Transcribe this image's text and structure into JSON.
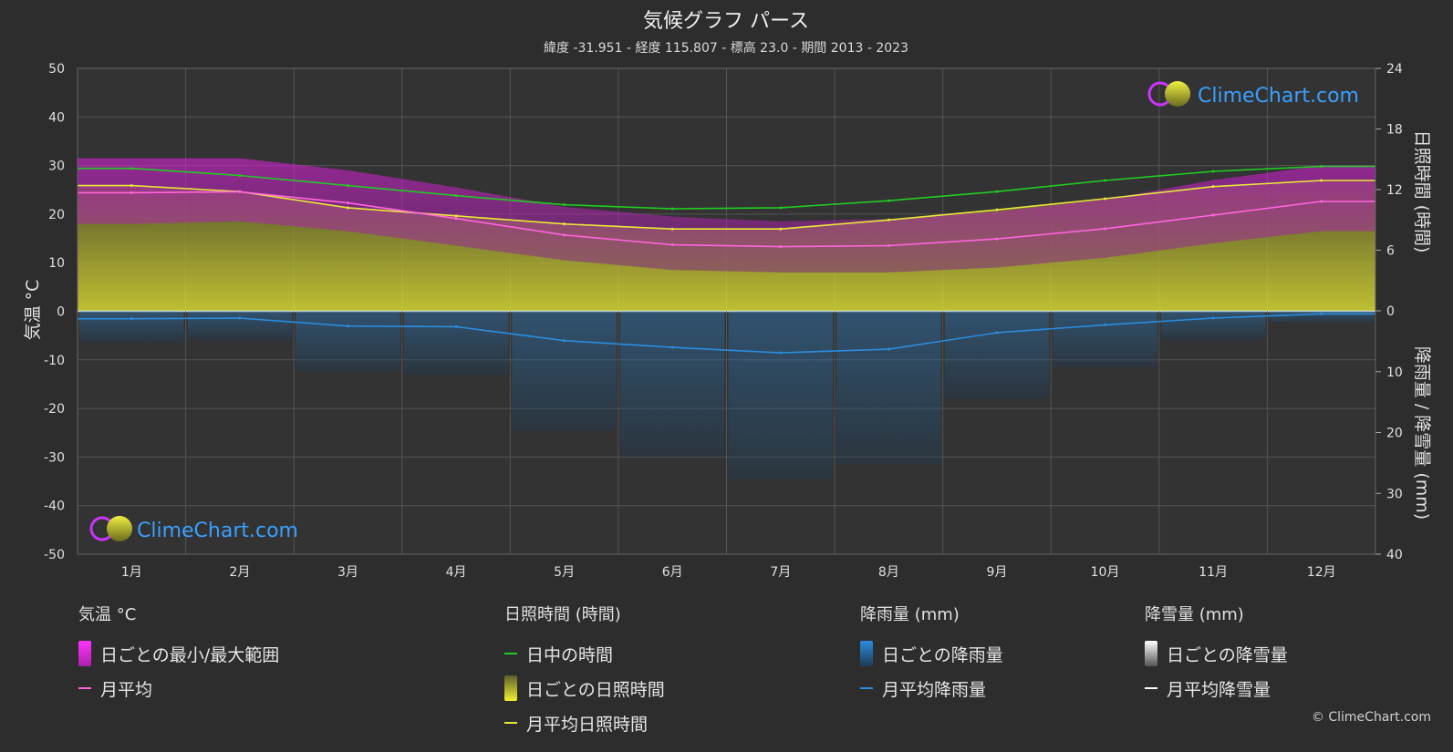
{
  "chart_data": {
    "type": "area",
    "title": "気候グラフ パース",
    "subtitle": "緯度 -31.951 - 経度 115.807 - 標高 23.0 - 期間 2013 - 2023",
    "left_axis": {
      "label": "気温 °C",
      "range": [
        -50,
        50
      ],
      "ticks": [
        50,
        40,
        30,
        20,
        10,
        0,
        -10,
        -20,
        -30,
        -40,
        -50
      ]
    },
    "right_axis_top": {
      "label": "日照時間 (時間)",
      "range": [
        0,
        24
      ],
      "ticks": [
        24,
        18,
        12,
        6,
        0
      ]
    },
    "right_axis_bottom": {
      "label": "降雨量 / 降雪量 (mm)",
      "range": [
        0,
        40
      ],
      "ticks": [
        0,
        10,
        20,
        30,
        40
      ]
    },
    "categories": [
      "1月",
      "2月",
      "3月",
      "4月",
      "5月",
      "6月",
      "7月",
      "8月",
      "9月",
      "10月",
      "11月",
      "12月"
    ],
    "grid": true,
    "series": [
      {
        "name": "日中の時間",
        "axis": "sunshine_hours",
        "color": "#22cc22",
        "values": [
          14.1,
          13.4,
          12.4,
          11.4,
          10.5,
          10.1,
          10.2,
          10.9,
          11.8,
          12.9,
          13.8,
          14.3
        ]
      },
      {
        "name": "月平均日照時間",
        "axis": "sunshine_hours",
        "color": "#e8e83a",
        "values": [
          12.4,
          11.8,
          10.2,
          9.4,
          8.6,
          8.1,
          8.1,
          9.0,
          10.0,
          11.1,
          12.3,
          12.9
        ]
      },
      {
        "name": "月平均",
        "axis": "temperature_c",
        "color": "#ff66dd",
        "values": [
          24.4,
          24.6,
          22.3,
          19.1,
          15.7,
          13.7,
          13.3,
          13.5,
          14.9,
          17.0,
          19.8,
          22.6
        ]
      },
      {
        "name": "月平均降雨量",
        "axis": "rain_mm",
        "color": "#2b8de0",
        "values": [
          1.3,
          1.2,
          2.5,
          2.6,
          4.9,
          6.0,
          6.9,
          6.3,
          3.6,
          2.3,
          1.2,
          0.5
        ]
      },
      {
        "name": "月平均降雪量",
        "axis": "snow_mm",
        "color": "#ffffff",
        "values": [
          0,
          0,
          0,
          0,
          0,
          0,
          0,
          0,
          0,
          0,
          0,
          0
        ]
      }
    ],
    "daily_temperature_range": {
      "name": "日ごとの最小/最大範囲",
      "min_c": [
        18,
        18.5,
        16.5,
        13.5,
        10.5,
        8.5,
        8,
        8,
        9,
        11,
        14,
        16.5
      ],
      "max_c": [
        31.5,
        31.5,
        29,
        25.5,
        21.5,
        19.5,
        18.5,
        19,
        20.5,
        23,
        27,
        30
      ]
    },
    "daily_sunshine": {
      "name": "日ごとの日照時間"
    },
    "daily_rain": {
      "name": "日ごとの降雨量"
    },
    "daily_snow": {
      "name": "日ごとの降雪量"
    }
  },
  "legend": {
    "temperature": {
      "title": "気温 °C",
      "items": [
        "日ごとの最小/最大範囲",
        "月平均"
      ]
    },
    "sunshine": {
      "title": "日照時間 (時間)",
      "items": [
        "日中の時間",
        "日ごとの日照時間",
        "月平均日照時間"
      ]
    },
    "rain": {
      "title": "降雨量 (mm)",
      "items": [
        "日ごとの降雨量",
        "月平均降雨量"
      ]
    },
    "snow": {
      "title": "降雪量 (mm)",
      "items": [
        "日ごとの降雪量",
        "月平均降雪量"
      ]
    }
  },
  "colors": {
    "background": "#2d2d2d",
    "temp_range": "#d81fd8",
    "daylight": "#22cc22",
    "sunshine": "#e8e83a",
    "rain": "#2b8de0",
    "snow": "#ffffff",
    "logo_text": "#3aa0ff"
  },
  "branding": {
    "logo_text": "ClimeChart.com",
    "copyright": "© ClimeChart.com"
  }
}
